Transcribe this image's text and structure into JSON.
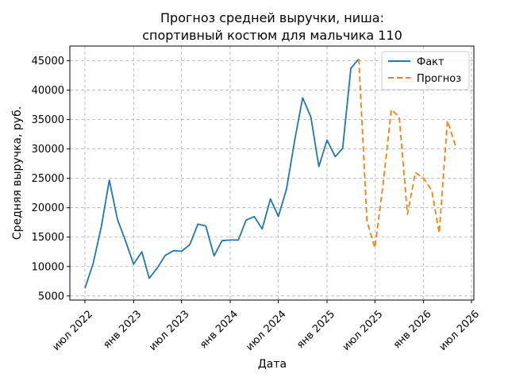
{
  "chart_data": {
    "type": "line",
    "title": [
      "Прогноз средней выручки, ниша:",
      "спортивный костюм для мальчика 110"
    ],
    "xlabel": "Дата",
    "ylabel": "Средняя выручка, руб.",
    "grid": true,
    "legend_position": "top-right",
    "x_ticks": [
      {
        "date": "2022-07-01",
        "label": "июл 2022"
      },
      {
        "date": "2023-01-01",
        "label": "янв 2023"
      },
      {
        "date": "2023-07-01",
        "label": "июл 2023"
      },
      {
        "date": "2024-01-01",
        "label": "янв 2024"
      },
      {
        "date": "2024-07-01",
        "label": "июл 2024"
      },
      {
        "date": "2025-01-01",
        "label": "янв 2025"
      },
      {
        "date": "2025-07-01",
        "label": "июл 2025"
      },
      {
        "date": "2026-01-01",
        "label": "янв 2026"
      },
      {
        "date": "2026-07-01",
        "label": "июл 2026"
      }
    ],
    "y_ticks": [
      5000,
      10000,
      15000,
      20000,
      25000,
      30000,
      35000,
      40000,
      45000
    ],
    "xlim": [
      "2022-05-05",
      "2026-07-10"
    ],
    "ylim": [
      4300,
      47500
    ],
    "series": [
      {
        "name": "Факт",
        "color": "#1f77b4",
        "style": "solid",
        "points": [
          {
            "x": "2022-07-01",
            "y": 6300
          },
          {
            "x": "2022-08-01",
            "y": 10500
          },
          {
            "x": "2022-09-01",
            "y": 16800
          },
          {
            "x": "2022-10-01",
            "y": 24700
          },
          {
            "x": "2022-11-01",
            "y": 18000
          },
          {
            "x": "2022-12-01",
            "y": 14400
          },
          {
            "x": "2023-01-01",
            "y": 10400
          },
          {
            "x": "2023-02-01",
            "y": 12500
          },
          {
            "x": "2023-03-01",
            "y": 8000
          },
          {
            "x": "2023-04-01",
            "y": 9800
          },
          {
            "x": "2023-05-01",
            "y": 11900
          },
          {
            "x": "2023-06-01",
            "y": 12700
          },
          {
            "x": "2023-07-01",
            "y": 12600
          },
          {
            "x": "2023-08-01",
            "y": 13700
          },
          {
            "x": "2023-09-01",
            "y": 17200
          },
          {
            "x": "2023-10-01",
            "y": 16900
          },
          {
            "x": "2023-11-01",
            "y": 11800
          },
          {
            "x": "2023-12-01",
            "y": 14400
          },
          {
            "x": "2024-01-01",
            "y": 14500
          },
          {
            "x": "2024-02-01",
            "y": 14500
          },
          {
            "x": "2024-03-01",
            "y": 17900
          },
          {
            "x": "2024-04-01",
            "y": 18500
          },
          {
            "x": "2024-05-01",
            "y": 16400
          },
          {
            "x": "2024-06-01",
            "y": 21500
          },
          {
            "x": "2024-07-01",
            "y": 18500
          },
          {
            "x": "2024-08-01",
            "y": 23200
          },
          {
            "x": "2024-09-01",
            "y": 31500
          },
          {
            "x": "2024-10-01",
            "y": 38700
          },
          {
            "x": "2024-11-01",
            "y": 35400
          },
          {
            "x": "2024-12-01",
            "y": 27000
          },
          {
            "x": "2025-01-01",
            "y": 31500
          },
          {
            "x": "2025-02-01",
            "y": 28700
          },
          {
            "x": "2025-03-01",
            "y": 30100
          },
          {
            "x": "2025-04-01",
            "y": 43700
          },
          {
            "x": "2025-05-01",
            "y": 45300
          }
        ]
      },
      {
        "name": "Прогноз",
        "color": "#ff7f0e",
        "style": "dashed",
        "points": [
          {
            "x": "2025-05-01",
            "y": 45300
          },
          {
            "x": "2025-06-01",
            "y": 17700
          },
          {
            "x": "2025-07-01",
            "y": 13200
          },
          {
            "x": "2025-08-01",
            "y": 24100
          },
          {
            "x": "2025-09-01",
            "y": 36700
          },
          {
            "x": "2025-10-01",
            "y": 35400
          },
          {
            "x": "2025-11-01",
            "y": 18900
          },
          {
            "x": "2025-12-01",
            "y": 26000
          },
          {
            "x": "2026-01-01",
            "y": 25000
          },
          {
            "x": "2026-02-01",
            "y": 22900
          },
          {
            "x": "2026-03-01",
            "y": 15700
          },
          {
            "x": "2026-04-01",
            "y": 34800
          },
          {
            "x": "2026-05-01",
            "y": 30600
          }
        ]
      }
    ]
  }
}
